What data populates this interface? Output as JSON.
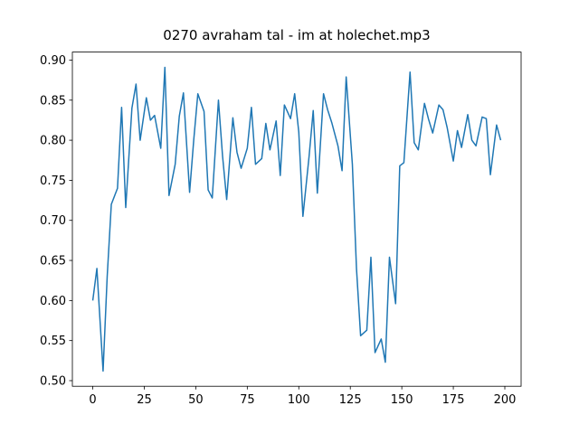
{
  "chart_data": {
    "type": "line",
    "title": "0270 avraham tal - im at holechet.mp3",
    "x": [
      0,
      2,
      5,
      7,
      9,
      12,
      14,
      16,
      19,
      21,
      23,
      26,
      28,
      30,
      33,
      35,
      37,
      40,
      42,
      44,
      47,
      49,
      51,
      54,
      56,
      58,
      61,
      63,
      65,
      68,
      70,
      72,
      75,
      77,
      79,
      82,
      84,
      86,
      89,
      91,
      93,
      96,
      98,
      100,
      102,
      105,
      107,
      109,
      112,
      114,
      116,
      119,
      121,
      123,
      126,
      128,
      130,
      133,
      135,
      137,
      140,
      142,
      144,
      147,
      149,
      151,
      154,
      156,
      158,
      161,
      163,
      165,
      168,
      170,
      172,
      175,
      177,
      179,
      182,
      184,
      186,
      189,
      191,
      193,
      196,
      198
    ],
    "series": [
      {
        "name": "series",
        "color": "#1f77b4",
        "values": [
          0.6,
          0.64,
          0.512,
          0.63,
          0.72,
          0.74,
          0.841,
          0.716,
          0.84,
          0.87,
          0.8,
          0.853,
          0.825,
          0.831,
          0.79,
          0.891,
          0.731,
          0.77,
          0.83,
          0.859,
          0.735,
          0.8,
          0.858,
          0.836,
          0.738,
          0.728,
          0.85,
          0.78,
          0.726,
          0.828,
          0.785,
          0.765,
          0.79,
          0.841,
          0.77,
          0.777,
          0.821,
          0.788,
          0.824,
          0.756,
          0.844,
          0.827,
          0.858,
          0.81,
          0.705,
          0.78,
          0.837,
          0.734,
          0.858,
          0.838,
          0.822,
          0.793,
          0.762,
          0.879,
          0.77,
          0.64,
          0.556,
          0.563,
          0.654,
          0.535,
          0.552,
          0.523,
          0.654,
          0.596,
          0.768,
          0.772,
          0.885,
          0.797,
          0.788,
          0.846,
          0.826,
          0.809,
          0.844,
          0.838,
          0.816,
          0.774,
          0.812,
          0.791,
          0.832,
          0.8,
          0.793,
          0.829,
          0.827,
          0.757,
          0.819,
          0.8
        ]
      }
    ],
    "xlim": [
      -9.9,
      207.9
    ],
    "xticks": [
      0,
      25,
      50,
      75,
      100,
      125,
      150,
      175,
      200
    ],
    "ylim": [
      0.493,
      0.91
    ],
    "yticks": [
      {
        "value": 0.5,
        "label": "0.50"
      },
      {
        "value": 0.55,
        "label": "0.55"
      },
      {
        "value": 0.6,
        "label": "0.60"
      },
      {
        "value": 0.65,
        "label": "0.65"
      },
      {
        "value": 0.7,
        "label": "0.70"
      },
      {
        "value": 0.75,
        "label": "0.75"
      },
      {
        "value": 0.8,
        "label": "0.80"
      },
      {
        "value": 0.85,
        "label": "0.85"
      },
      {
        "value": 0.9,
        "label": "0.90"
      }
    ]
  }
}
